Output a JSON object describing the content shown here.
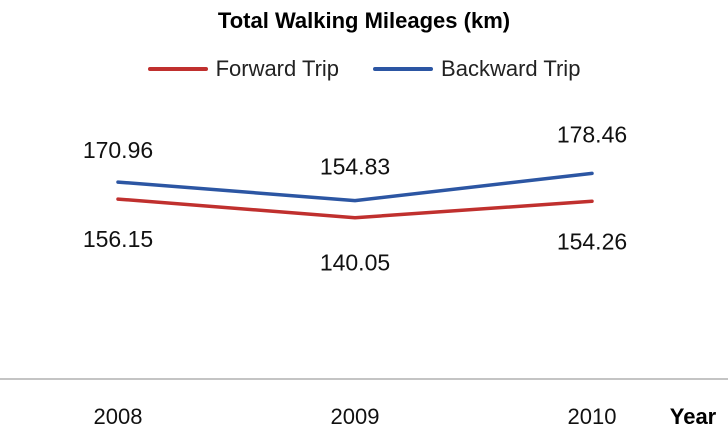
{
  "chart_data": {
    "type": "line",
    "title": "Total Walking Mileages (km)",
    "xlabel": "Year",
    "ylabel": "",
    "categories": [
      "2008",
      "2009",
      "2010"
    ],
    "series": [
      {
        "name": "Forward Trip",
        "values": [
          156.15,
          140.05,
          154.26
        ],
        "color": "#c0302e"
      },
      {
        "name": "Backward Trip",
        "values": [
          170.96,
          154.83,
          178.46
        ],
        "color": "#2c56a3"
      }
    ],
    "ylim": [
      0,
      280
    ],
    "grid": false,
    "legend": "top"
  }
}
